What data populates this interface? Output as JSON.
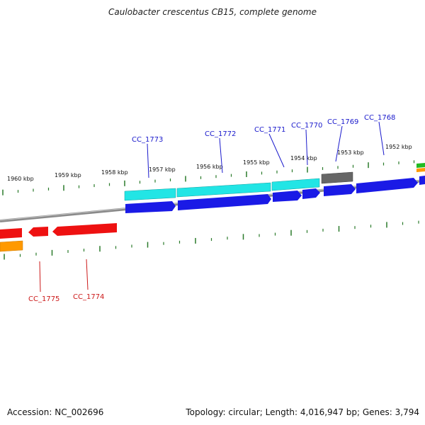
{
  "title": "Caulobacter crescentus CB15, complete genome",
  "footer": {
    "accession": "Accession: NC_002696",
    "summary": "Topology: circular; Length: 4,016,947 bp; Genes: 3,794"
  },
  "colors": {
    "backbone": "#808080",
    "tick": "#2a7a2a",
    "tick_label": "#111111",
    "forward_label": "#1a1acc",
    "reverse_label": "#cc1a1a",
    "cds_blue": "#1a1ae6",
    "gene_cyan": "#22e5e5",
    "gene_gray": "#666666",
    "cds_red": "#ee1111",
    "gene_orange": "#ff9900",
    "gene_green": "#22bb22"
  },
  "scale_labels": [
    "1960 kbp",
    "1959 kbp",
    "1958 kbp",
    "1957 kbp",
    "1956 kbp",
    "1955 kbp",
    "1954 kbp",
    "1953 kbp",
    "1952 kbp"
  ],
  "forward_genes": [
    "CC_1773",
    "CC_1772",
    "CC_1771",
    "CC_1770",
    "CC_1769",
    "CC_1768"
  ],
  "reverse_genes": [
    "CC_1775",
    "CC_1774"
  ]
}
